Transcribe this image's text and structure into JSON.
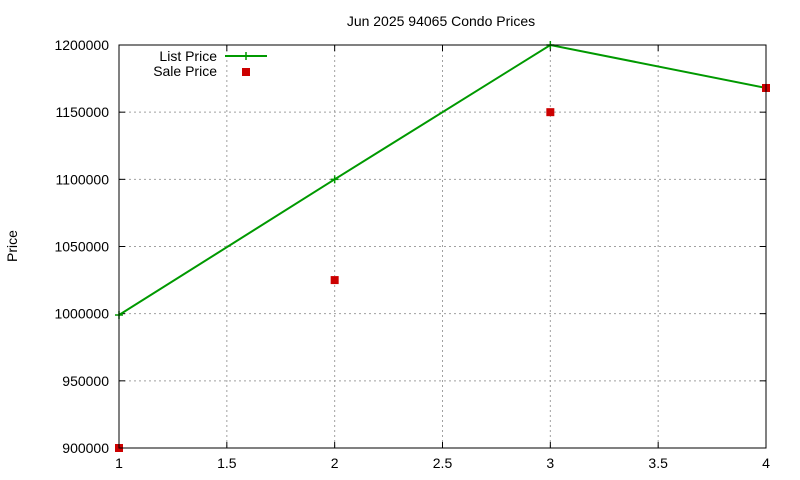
{
  "chart_data": {
    "type": "line",
    "title": "Jun 2025 94065 Condo Prices",
    "xlabel": "",
    "ylabel": "Price",
    "xlim": [
      1,
      4
    ],
    "ylim": [
      900000,
      1200000
    ],
    "xticks": [
      1,
      1.5,
      2,
      2.5,
      3,
      3.5,
      4
    ],
    "xtick_labels": [
      "1",
      "1.5",
      "2",
      "2.5",
      "3",
      "3.5",
      "4"
    ],
    "yticks": [
      900000,
      950000,
      1000000,
      1050000,
      1100000,
      1150000,
      1200000
    ],
    "ytick_labels": [
      "900000",
      "950000",
      "1000000",
      "1050000",
      "1100000",
      "1150000",
      "1200000"
    ],
    "grid": true,
    "legend_position": "top-left",
    "series": [
      {
        "name": "List Price",
        "style": "line-with-plus-markers",
        "color": "#009900",
        "x": [
          1,
          2,
          3,
          4
        ],
        "y": [
          999000,
          1100000,
          1200000,
          1168000
        ]
      },
      {
        "name": "Sale Price",
        "style": "square-markers",
        "color": "#cc0000",
        "x": [
          1,
          2,
          3,
          4
        ],
        "y": [
          900000,
          1025000,
          1150000,
          1168000
        ]
      }
    ]
  }
}
